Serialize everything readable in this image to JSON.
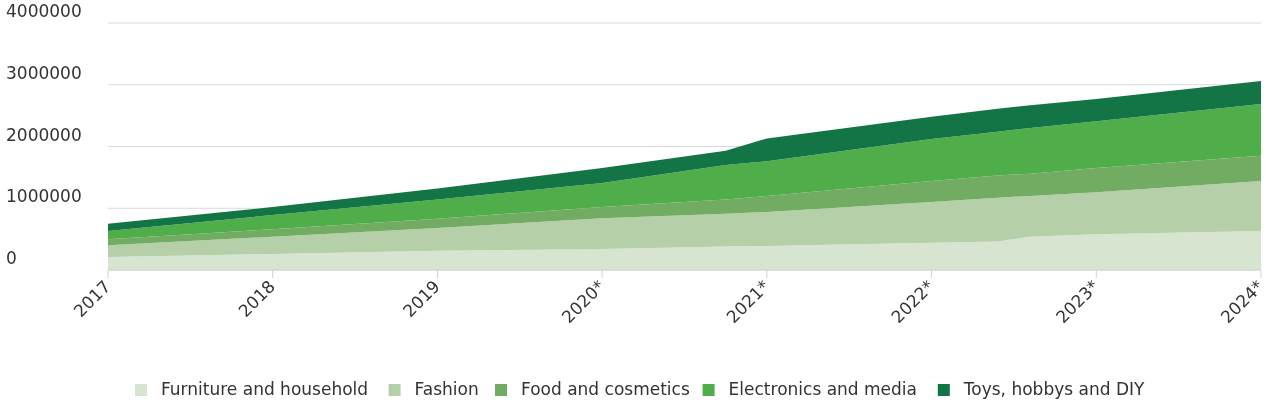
{
  "chart_data": {
    "type": "area",
    "stacked": true,
    "x": [
      2017,
      2018,
      2019,
      2020,
      2020.75,
      2021,
      2022,
      2022.4,
      2022.6,
      2023,
      2024
    ],
    "series": [
      {
        "name": "Furniture and household",
        "color": "#d7e4d0",
        "values": [
          210000,
          260000,
          310000,
          340000,
          380000,
          390000,
          440000,
          460000,
          540000,
          580000,
          630000
        ]
      },
      {
        "name": "Fashion",
        "color": "#b5cfa8",
        "values": [
          190000,
          280000,
          370000,
          500000,
          530000,
          550000,
          660000,
          710000,
          660000,
          680000,
          810000
        ]
      },
      {
        "name": "Food and cosmetics",
        "color": "#72ac62",
        "values": [
          100000,
          120000,
          150000,
          180000,
          230000,
          260000,
          340000,
          360000,
          360000,
          390000,
          410000
        ]
      },
      {
        "name": "Electronics and media",
        "color": "#4fae4a",
        "values": [
          130000,
          230000,
          310000,
          390000,
          560000,
          560000,
          680000,
          710000,
          740000,
          760000,
          840000
        ]
      },
      {
        "name": "Toys, hobbys and DIY",
        "color": "#137445",
        "values": [
          120000,
          130000,
          180000,
          240000,
          230000,
          370000,
          360000,
          370000,
          370000,
          360000,
          370000
        ]
      }
    ],
    "xlim": [
      2017,
      2024
    ],
    "xticks": [
      2017,
      2018,
      2019,
      {
        "value": 2020,
        "label": "2020*"
      },
      {
        "value": 2021,
        "label": "2021*"
      },
      {
        "value": 2022,
        "label": "2022*"
      },
      {
        "value": 2023,
        "label": "2023*"
      },
      {
        "value": 2024,
        "label": "2024*"
      }
    ],
    "ylim": [
      0,
      4000000
    ],
    "yticks": [
      0,
      1000000,
      2000000,
      3000000,
      4000000
    ],
    "grid": "y",
    "legend": "bottom"
  }
}
